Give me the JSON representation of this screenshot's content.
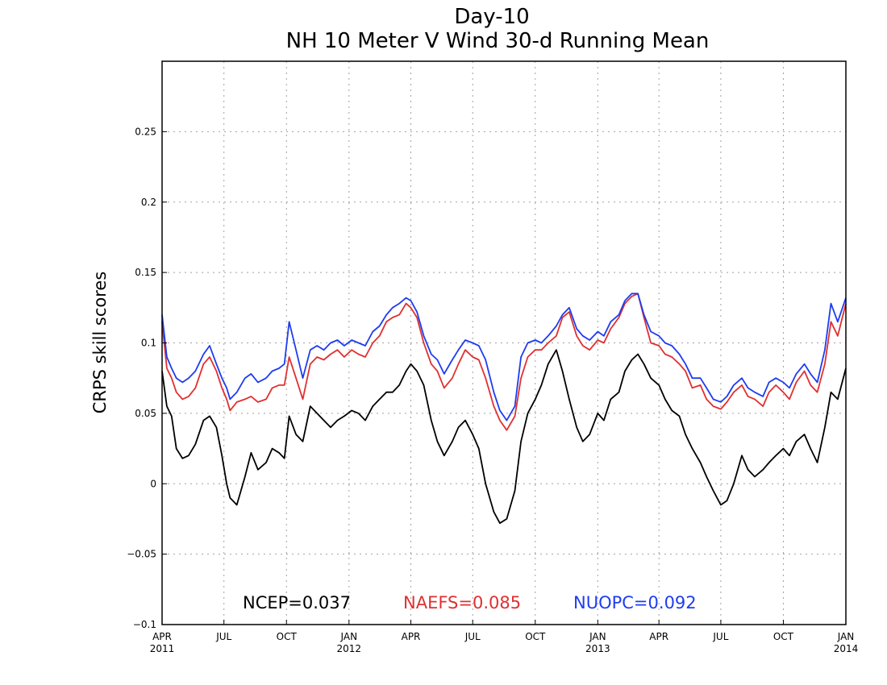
{
  "chart_data": {
    "type": "line",
    "title_line1": "Day-10",
    "title_line2": "NH 10 Meter V Wind 30-d Running Mean",
    "ylabel": "CRPS skill scores",
    "xlabel": "",
    "ylim": [
      -0.1,
      0.3
    ],
    "yticks": [
      -0.1,
      -0.05,
      0,
      0.05,
      0.1,
      0.15,
      0.2,
      0.25
    ],
    "ytick_labels": [
      "−0.1",
      "−0.05",
      "0",
      "0.05",
      "0.1",
      "0.15",
      "0.2",
      "0.25"
    ],
    "xlim": [
      "2011-04-01",
      "2014-01-01"
    ],
    "grid": true,
    "xticks": [
      {
        "date": "2011-04-01",
        "label": "APR",
        "year": "2011"
      },
      {
        "date": "2011-07-01",
        "label": "JUL",
        "year": ""
      },
      {
        "date": "2011-10-01",
        "label": "OCT",
        "year": ""
      },
      {
        "date": "2012-01-01",
        "label": "JAN",
        "year": "2012"
      },
      {
        "date": "2012-04-01",
        "label": "APR",
        "year": ""
      },
      {
        "date": "2012-07-01",
        "label": "JUL",
        "year": ""
      },
      {
        "date": "2012-10-01",
        "label": "OCT",
        "year": ""
      },
      {
        "date": "2013-01-01",
        "label": "JAN",
        "year": "2013"
      },
      {
        "date": "2013-04-01",
        "label": "APR",
        "year": ""
      },
      {
        "date": "2013-07-01",
        "label": "JUL",
        "year": ""
      },
      {
        "date": "2013-10-01",
        "label": "OCT",
        "year": ""
      },
      {
        "date": "2014-01-01",
        "label": "JAN",
        "year": "2014"
      }
    ],
    "legend": [
      {
        "text": "NCEP=0.037",
        "color": "#000000"
      },
      {
        "text": "NAEFS=0.085",
        "color": "#e03030"
      },
      {
        "text": "NUOPC=0.092",
        "color": "#1e3cf0"
      }
    ],
    "series": [
      {
        "name": "NCEP",
        "color": "#000000",
        "x": [
          "2011-04-01",
          "2011-04-08",
          "2011-04-15",
          "2011-04-22",
          "2011-05-01",
          "2011-05-10",
          "2011-05-20",
          "2011-06-01",
          "2011-06-10",
          "2011-06-20",
          "2011-06-28",
          "2011-07-05",
          "2011-07-10",
          "2011-07-20",
          "2011-08-01",
          "2011-08-10",
          "2011-08-20",
          "2011-09-01",
          "2011-09-10",
          "2011-09-20",
          "2011-09-28",
          "2011-10-05",
          "2011-10-15",
          "2011-10-25",
          "2011-11-05",
          "2011-11-15",
          "2011-11-25",
          "2011-12-05",
          "2011-12-15",
          "2011-12-25",
          "2012-01-05",
          "2012-01-15",
          "2012-01-25",
          "2012-02-05",
          "2012-02-15",
          "2012-02-25",
          "2012-03-05",
          "2012-03-15",
          "2012-03-25",
          "2012-04-01",
          "2012-04-10",
          "2012-04-20",
          "2012-05-01",
          "2012-05-10",
          "2012-05-20",
          "2012-06-01",
          "2012-06-10",
          "2012-06-20",
          "2012-07-01",
          "2012-07-10",
          "2012-07-20",
          "2012-08-01",
          "2012-08-10",
          "2012-08-20",
          "2012-09-01",
          "2012-09-10",
          "2012-09-20",
          "2012-10-01",
          "2012-10-10",
          "2012-10-20",
          "2012-11-01",
          "2012-11-10",
          "2012-11-20",
          "2012-12-01",
          "2012-12-10",
          "2012-12-20",
          "2013-01-01",
          "2013-01-10",
          "2013-01-20",
          "2013-02-01",
          "2013-02-10",
          "2013-02-20",
          "2013-03-01",
          "2013-03-10",
          "2013-03-20",
          "2013-04-01",
          "2013-04-10",
          "2013-04-20",
          "2013-05-01",
          "2013-05-10",
          "2013-05-20",
          "2013-06-01",
          "2013-06-10",
          "2013-06-20",
          "2013-07-01",
          "2013-07-10",
          "2013-07-20",
          "2013-08-01",
          "2013-08-10",
          "2013-08-20",
          "2013-09-01",
          "2013-09-10",
          "2013-09-20",
          "2013-10-01",
          "2013-10-10",
          "2013-10-20",
          "2013-11-01",
          "2013-11-10",
          "2013-11-20",
          "2013-12-01",
          "2013-12-10",
          "2013-12-20",
          "2014-01-01"
        ],
        "values": [
          0.08,
          0.055,
          0.048,
          0.025,
          0.018,
          0.02,
          0.028,
          0.045,
          0.048,
          0.04,
          0.02,
          0.0,
          -0.01,
          -0.015,
          0.005,
          0.022,
          0.01,
          0.015,
          0.025,
          0.022,
          0.018,
          0.048,
          0.035,
          0.03,
          0.055,
          0.05,
          0.045,
          0.04,
          0.045,
          0.048,
          0.052,
          0.05,
          0.045,
          0.055,
          0.06,
          0.065,
          0.065,
          0.07,
          0.08,
          0.085,
          0.08,
          0.07,
          0.045,
          0.03,
          0.02,
          0.03,
          0.04,
          0.045,
          0.035,
          0.025,
          0.0,
          -0.02,
          -0.028,
          -0.025,
          -0.005,
          0.03,
          0.05,
          0.06,
          0.07,
          0.085,
          0.095,
          0.08,
          0.06,
          0.04,
          0.03,
          0.035,
          0.05,
          0.045,
          0.06,
          0.065,
          0.08,
          0.088,
          0.092,
          0.085,
          0.075,
          0.07,
          0.06,
          0.052,
          0.048,
          0.035,
          0.025,
          0.015,
          0.005,
          -0.005,
          -0.015,
          -0.012,
          0.0,
          0.02,
          0.01,
          0.005,
          0.01,
          0.015,
          0.02,
          0.025,
          0.02,
          0.03,
          0.035,
          0.025,
          0.015,
          0.04,
          0.065,
          0.06,
          0.082
        ]
      },
      {
        "name": "NAEFS",
        "color": "#e03030",
        "x": [
          "2011-04-01",
          "2011-04-08",
          "2011-04-15",
          "2011-04-22",
          "2011-05-01",
          "2011-05-10",
          "2011-05-20",
          "2011-06-01",
          "2011-06-10",
          "2011-06-20",
          "2011-06-28",
          "2011-07-05",
          "2011-07-10",
          "2011-07-20",
          "2011-08-01",
          "2011-08-10",
          "2011-08-20",
          "2011-09-01",
          "2011-09-10",
          "2011-09-20",
          "2011-09-28",
          "2011-10-05",
          "2011-10-15",
          "2011-10-25",
          "2011-11-05",
          "2011-11-15",
          "2011-11-25",
          "2011-12-05",
          "2011-12-15",
          "2011-12-25",
          "2012-01-05",
          "2012-01-15",
          "2012-01-25",
          "2012-02-05",
          "2012-02-15",
          "2012-02-25",
          "2012-03-05",
          "2012-03-15",
          "2012-03-25",
          "2012-04-01",
          "2012-04-10",
          "2012-04-20",
          "2012-05-01",
          "2012-05-10",
          "2012-05-20",
          "2012-06-01",
          "2012-06-10",
          "2012-06-20",
          "2012-07-01",
          "2012-07-10",
          "2012-07-20",
          "2012-08-01",
          "2012-08-10",
          "2012-08-20",
          "2012-09-01",
          "2012-09-10",
          "2012-09-20",
          "2012-10-01",
          "2012-10-10",
          "2012-10-20",
          "2012-11-01",
          "2012-11-10",
          "2012-11-20",
          "2012-12-01",
          "2012-12-10",
          "2012-12-20",
          "2013-01-01",
          "2013-01-10",
          "2013-01-20",
          "2013-02-01",
          "2013-02-10",
          "2013-02-20",
          "2013-03-01",
          "2013-03-10",
          "2013-03-20",
          "2013-04-01",
          "2013-04-10",
          "2013-04-20",
          "2013-05-01",
          "2013-05-10",
          "2013-05-20",
          "2013-06-01",
          "2013-06-10",
          "2013-06-20",
          "2013-07-01",
          "2013-07-10",
          "2013-07-20",
          "2013-08-01",
          "2013-08-10",
          "2013-08-20",
          "2013-09-01",
          "2013-09-10",
          "2013-09-20",
          "2013-10-01",
          "2013-10-10",
          "2013-10-20",
          "2013-11-01",
          "2013-11-10",
          "2013-11-20",
          "2013-12-01",
          "2013-12-10",
          "2013-12-20",
          "2014-01-01"
        ],
        "values": [
          0.115,
          0.082,
          0.075,
          0.065,
          0.06,
          0.062,
          0.068,
          0.085,
          0.09,
          0.08,
          0.068,
          0.06,
          0.052,
          0.058,
          0.06,
          0.062,
          0.058,
          0.06,
          0.068,
          0.07,
          0.07,
          0.09,
          0.075,
          0.06,
          0.085,
          0.09,
          0.088,
          0.092,
          0.095,
          0.09,
          0.095,
          0.092,
          0.09,
          0.1,
          0.105,
          0.115,
          0.118,
          0.12,
          0.128,
          0.125,
          0.118,
          0.1,
          0.085,
          0.08,
          0.068,
          0.075,
          0.085,
          0.095,
          0.09,
          0.088,
          0.075,
          0.055,
          0.045,
          0.038,
          0.048,
          0.075,
          0.09,
          0.095,
          0.095,
          0.1,
          0.105,
          0.118,
          0.122,
          0.105,
          0.098,
          0.095,
          0.102,
          0.1,
          0.11,
          0.118,
          0.128,
          0.133,
          0.135,
          0.118,
          0.1,
          0.098,
          0.092,
          0.09,
          0.085,
          0.08,
          0.068,
          0.07,
          0.06,
          0.055,
          0.053,
          0.058,
          0.065,
          0.07,
          0.062,
          0.06,
          0.055,
          0.065,
          0.07,
          0.065,
          0.06,
          0.072,
          0.08,
          0.07,
          0.065,
          0.085,
          0.115,
          0.105,
          0.128
        ]
      },
      {
        "name": "NUOPC",
        "color": "#1e3cf0",
        "x": [
          "2011-04-01",
          "2011-04-08",
          "2011-04-15",
          "2011-04-22",
          "2011-05-01",
          "2011-05-10",
          "2011-05-20",
          "2011-06-01",
          "2011-06-10",
          "2011-06-20",
          "2011-06-28",
          "2011-07-05",
          "2011-07-10",
          "2011-07-20",
          "2011-08-01",
          "2011-08-10",
          "2011-08-20",
          "2011-09-01",
          "2011-09-10",
          "2011-09-20",
          "2011-09-28",
          "2011-10-05",
          "2011-10-15",
          "2011-10-25",
          "2011-11-05",
          "2011-11-15",
          "2011-11-25",
          "2011-12-05",
          "2011-12-15",
          "2011-12-25",
          "2012-01-05",
          "2012-01-15",
          "2012-01-25",
          "2012-02-05",
          "2012-02-15",
          "2012-02-25",
          "2012-03-05",
          "2012-03-15",
          "2012-03-25",
          "2012-04-01",
          "2012-04-10",
          "2012-04-20",
          "2012-05-01",
          "2012-05-10",
          "2012-05-20",
          "2012-06-01",
          "2012-06-10",
          "2012-06-20",
          "2012-07-01",
          "2012-07-10",
          "2012-07-20",
          "2012-08-01",
          "2012-08-10",
          "2012-08-20",
          "2012-09-01",
          "2012-09-10",
          "2012-09-20",
          "2012-10-01",
          "2012-10-10",
          "2012-10-20",
          "2012-11-01",
          "2012-11-10",
          "2012-11-20",
          "2012-12-01",
          "2012-12-10",
          "2012-12-20",
          "2013-01-01",
          "2013-01-10",
          "2013-01-20",
          "2013-02-01",
          "2013-02-10",
          "2013-02-20",
          "2013-03-01",
          "2013-03-10",
          "2013-03-20",
          "2013-04-01",
          "2013-04-10",
          "2013-04-20",
          "2013-05-01",
          "2013-05-10",
          "2013-05-20",
          "2013-06-01",
          "2013-06-10",
          "2013-06-20",
          "2013-07-01",
          "2013-07-10",
          "2013-07-20",
          "2013-08-01",
          "2013-08-10",
          "2013-08-20",
          "2013-09-01",
          "2013-09-10",
          "2013-09-20",
          "2013-10-01",
          "2013-10-10",
          "2013-10-20",
          "2013-11-01",
          "2013-11-10",
          "2013-11-20",
          "2013-12-01",
          "2013-12-10",
          "2013-12-20",
          "2014-01-01"
        ],
        "values": [
          0.12,
          0.09,
          0.082,
          0.075,
          0.072,
          0.075,
          0.08,
          0.092,
          0.098,
          0.085,
          0.075,
          0.068,
          0.06,
          0.065,
          0.075,
          0.078,
          0.072,
          0.075,
          0.08,
          0.082,
          0.085,
          0.115,
          0.095,
          0.075,
          0.095,
          0.098,
          0.095,
          0.1,
          0.102,
          0.098,
          0.102,
          0.1,
          0.098,
          0.108,
          0.112,
          0.12,
          0.125,
          0.128,
          0.132,
          0.13,
          0.122,
          0.105,
          0.092,
          0.088,
          0.078,
          0.088,
          0.095,
          0.102,
          0.1,
          0.098,
          0.088,
          0.065,
          0.052,
          0.045,
          0.055,
          0.09,
          0.1,
          0.102,
          0.1,
          0.105,
          0.112,
          0.12,
          0.125,
          0.11,
          0.105,
          0.102,
          0.108,
          0.105,
          0.115,
          0.12,
          0.13,
          0.135,
          0.135,
          0.12,
          0.108,
          0.105,
          0.1,
          0.098,
          0.092,
          0.085,
          0.075,
          0.075,
          0.068,
          0.06,
          0.058,
          0.062,
          0.07,
          0.075,
          0.068,
          0.065,
          0.062,
          0.072,
          0.075,
          0.072,
          0.068,
          0.078,
          0.085,
          0.078,
          0.072,
          0.095,
          0.128,
          0.115,
          0.132
        ]
      }
    ]
  }
}
